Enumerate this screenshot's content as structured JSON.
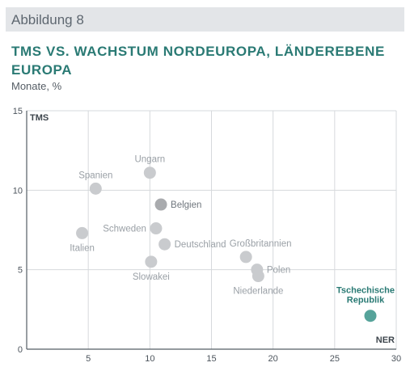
{
  "figure_label": "Abbildung 8",
  "title": "TMS VS. WACHSTUM NORDEUROPA, LÄNDEREBENE EUROPA",
  "subtitle": "Monate, %",
  "colors": {
    "point": "#c9cbce",
    "point_dark": "#a9abae",
    "highlight": "#56a39a",
    "title": "#2a7a74",
    "grid": "#d6d9dc"
  },
  "chart_data": {
    "type": "scatter",
    "title": "TMS VS. WACHSTUM NORDEUROPA, LÄNDEREBENE EUROPA",
    "xlabel": "NER",
    "ylabel": "TMS",
    "xlim": [
      0,
      30
    ],
    "ylim": [
      0,
      15
    ],
    "xticks": [
      5,
      10,
      15,
      20,
      25,
      30
    ],
    "yticks": [
      0,
      5,
      10,
      15
    ],
    "grid": true,
    "points": [
      {
        "name": "Ungarn",
        "x": 10.0,
        "y": 11.1,
        "label_pos": "above"
      },
      {
        "name": "Spanien",
        "x": 5.6,
        "y": 10.1,
        "label_pos": "above"
      },
      {
        "name": "Belgien",
        "x": 10.9,
        "y": 9.1,
        "label_pos": "right"
      },
      {
        "name": "Schweden",
        "x": 10.5,
        "y": 7.6,
        "label_pos": "left"
      },
      {
        "name": "Italien",
        "x": 4.5,
        "y": 7.3,
        "label_pos": "below"
      },
      {
        "name": "Deutschland",
        "x": 11.2,
        "y": 6.6,
        "label_pos": "right"
      },
      {
        "name": "Slowakei",
        "x": 10.1,
        "y": 5.5,
        "label_pos": "below"
      },
      {
        "name": "Großbritannien",
        "x": 17.8,
        "y": 5.8,
        "label_pos": "above-right"
      },
      {
        "name": "Polen",
        "x": 18.7,
        "y": 5.0,
        "label_pos": "right"
      },
      {
        "name": "Niederlande",
        "x": 18.8,
        "y": 4.6,
        "label_pos": "below"
      },
      {
        "name": "Tschechische Republik",
        "x": 27.9,
        "y": 2.1,
        "label_pos": "above",
        "highlight": true
      }
    ],
    "highlight_label_lines": [
      "Tschechische",
      "Republik"
    ]
  }
}
